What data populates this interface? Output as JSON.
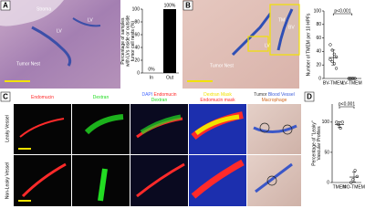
{
  "panels": {
    "A": {
      "letter": "A",
      "labels": [
        "Stroma",
        "LV",
        "Tumor Nest",
        "LV"
      ]
    },
    "B": {
      "letter": "B",
      "labels": [
        "Tumor Nest",
        "TM",
        "BV",
        "LV"
      ]
    },
    "C": {
      "letter": "C",
      "headers": [
        [
          [
            {
              "text": "Endomucin",
              "color": "#ff2a2a"
            }
          ]
        ],
        [
          [
            {
              "text": "Dextran",
              "color": "#22dd22"
            }
          ]
        ],
        [
          [
            {
              "text": "DAPI ",
              "color": "#4a6cff"
            },
            {
              "text": "Endomucin",
              "color": "#ff2a2a"
            }
          ],
          [
            {
              "text": "Dextran",
              "color": "#22dd22"
            }
          ]
        ],
        [
          [
            {
              "text": "Dextran Mask",
              "color": "#f2e200"
            }
          ],
          [
            {
              "text": "Endomucin mask",
              "color": "#ff2a2a"
            }
          ]
        ],
        [
          [
            {
              "text": "Tumor ",
              "color": "#333333"
            },
            {
              "text": "Blood Vessel",
              "color": "#3a5bd9"
            }
          ],
          [
            {
              "text": "Macrophage",
              "color": "#d2691e"
            }
          ]
        ]
      ],
      "rows": [
        "Leaky Vessel",
        "Non-Leaky Vessel"
      ]
    },
    "D": {
      "letter": "D"
    }
  },
  "chart_data": [
    {
      "type": "bar",
      "panel": "A",
      "ylabel": [
        "Percentage of samples",
        "with LVs inside or outside",
        "tumor cell nests (%)"
      ],
      "categories": [
        "In",
        "Out"
      ],
      "values": [
        0,
        100
      ],
      "value_labels": [
        "0%",
        "100%"
      ],
      "color": "#000000",
      "ylim": [
        0,
        100
      ],
      "yticks": [
        0,
        20,
        40,
        60,
        80,
        100
      ]
    },
    {
      "type": "dot",
      "panel": "B",
      "ylabel": [
        "Number of TMEM per 10 HPFs"
      ],
      "annotation": "p<0.001",
      "categories": [
        "BV-TMEM",
        "LV-TMEM"
      ],
      "groups": [
        [
          50,
          42,
          36,
          32,
          28,
          25,
          22,
          15
        ],
        [
          0,
          0,
          0,
          0,
          0,
          0,
          0
        ]
      ],
      "means": [
        31,
        0
      ],
      "sd": [
        11,
        0
      ],
      "color": "#000000",
      "ylim": [
        0,
        100
      ],
      "yticks": [
        0,
        20,
        40,
        60,
        80,
        100
      ]
    },
    {
      "type": "dot",
      "panel": "D",
      "ylabel": [
        "Percentage of \"Leaky\"",
        "Vascular Profiles"
      ],
      "annotation": "p<0.001",
      "categories": [
        "TMEM",
        "NO-TMEM"
      ],
      "groups": [
        [
          100,
          96,
          90,
          100
        ],
        [
          0,
          5,
          20,
          10
        ]
      ],
      "means": [
        96,
        9
      ],
      "sd": [
        5,
        8
      ],
      "color": "#000000",
      "ylim": [
        0,
        130
      ],
      "yticks": [
        0,
        50,
        100
      ]
    }
  ]
}
